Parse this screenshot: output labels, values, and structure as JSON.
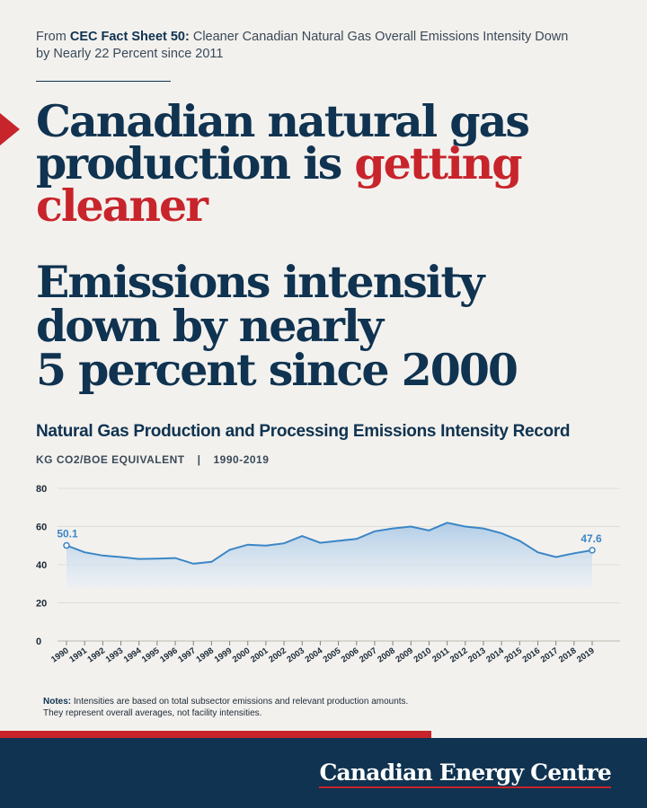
{
  "source": {
    "prefix": "From ",
    "bold": "CEC Fact Sheet 50:",
    "text": " Cleaner Canadian Natural Gas Overall Emissions Intensity Down by Nearly 22 Percent since 2011"
  },
  "headline": {
    "line1": "Canadian natural gas",
    "line2a": "production is ",
    "line2b": "getting",
    "line3": "cleaner"
  },
  "subhead": {
    "line1": "Emissions intensity",
    "line2": "down by nearly",
    "line3": "5 percent since 2000"
  },
  "chart_data": {
    "type": "area",
    "title": "Natural Gas Production and Processing Emissions Intensity Record",
    "unit_label": "KG CO2/BOE EQUIVALENT",
    "separator": "|",
    "range_label": "1990-2019",
    "x": [
      "1990",
      "1991",
      "1992",
      "1993",
      "1994",
      "1995",
      "1996",
      "1997",
      "1998",
      "1999",
      "2000",
      "2001",
      "2002",
      "2003",
      "2004",
      "2005",
      "2006",
      "2007",
      "2008",
      "2009",
      "2010",
      "2011",
      "2012",
      "2013",
      "2014",
      "2015",
      "2016",
      "2017",
      "2018",
      "2019"
    ],
    "values": [
      50.1,
      46.5,
      44.8,
      44.0,
      43.0,
      43.2,
      43.5,
      40.5,
      41.5,
      47.8,
      50.5,
      50.0,
      51.2,
      55.0,
      51.5,
      52.5,
      53.5,
      57.5,
      59.0,
      60.0,
      58.0,
      62.0,
      60.0,
      59.0,
      56.5,
      52.5,
      46.5,
      44.0,
      46.0,
      47.6
    ],
    "ylim": [
      0,
      80
    ],
    "yticks": [
      "0",
      "20",
      "40",
      "60",
      "80"
    ],
    "annotations": [
      {
        "label": "50.1",
        "index": 0
      },
      {
        "label": "47.6",
        "index": 29
      }
    ],
    "colors": {
      "line": "#3b86c6",
      "fill_top": "#aac9e6",
      "fill_bottom": "#e8eff6",
      "grid": "#e0dcd6"
    },
    "grid": true
  },
  "notes": {
    "bold": "Notes:",
    "line1": " Intensities are based on total subsector emissions and relevant production amounts.",
    "line2": "They represent overall averages, not facility intensities."
  },
  "footer": {
    "logo": "Canadian Energy Centre"
  },
  "colors": {
    "navy": "#0f3350",
    "red": "#c8242b",
    "background": "#f3f1ee"
  }
}
